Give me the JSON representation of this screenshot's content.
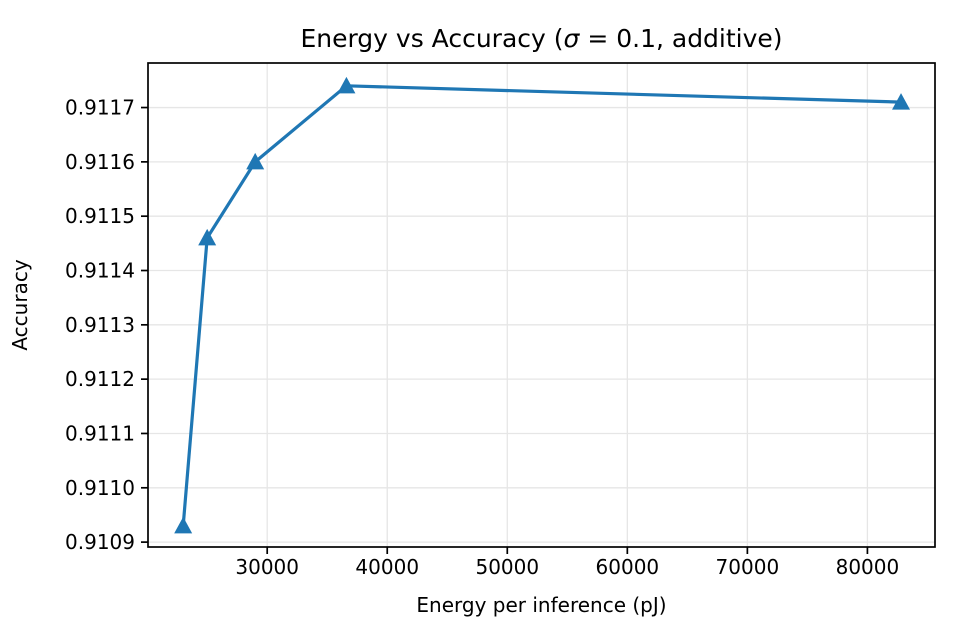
{
  "chart_data": {
    "type": "line",
    "title": "Energy vs Accuracy (σ = 0.1, additive)",
    "title_rich": [
      {
        "text": "Energy vs Accuracy (",
        "italic": false
      },
      {
        "text": "σ",
        "italic": true
      },
      {
        "text": " = 0.1, additive)",
        "italic": false
      }
    ],
    "xlabel": "Energy per inference (pJ)",
    "ylabel": "Accuracy",
    "series": [
      {
        "name": "energy-accuracy-tradeoff",
        "x": [
          23000,
          25000,
          29000,
          36600,
          82800
        ],
        "y": [
          0.91093,
          0.91146,
          0.9116,
          0.91174,
          0.91171
        ]
      }
    ],
    "xlim": [
      20070,
      85630
    ],
    "ylim": [
      0.910891,
      0.911782
    ],
    "xticks": [
      30000,
      40000,
      50000,
      60000,
      70000,
      80000
    ],
    "xtick_labels": [
      "30000",
      "40000",
      "50000",
      "60000",
      "70000",
      "80000"
    ],
    "yticks": [
      0.9109,
      0.911,
      0.9111,
      0.9112,
      0.9113,
      0.9114,
      0.9115,
      0.9116,
      0.9117
    ],
    "ytick_labels": [
      "0.9109",
      "0.9110",
      "0.9111",
      "0.9112",
      "0.9113",
      "0.9114",
      "0.9115",
      "0.9116",
      "0.9117"
    ],
    "grid": true,
    "legend": null,
    "marker": "triangle-up",
    "colors": {
      "line": "#1f77b4",
      "marker": "#1f77b4",
      "grid": "#e6e6e6",
      "spine": "#000000",
      "background": "#ffffff",
      "text": "#000000"
    }
  }
}
